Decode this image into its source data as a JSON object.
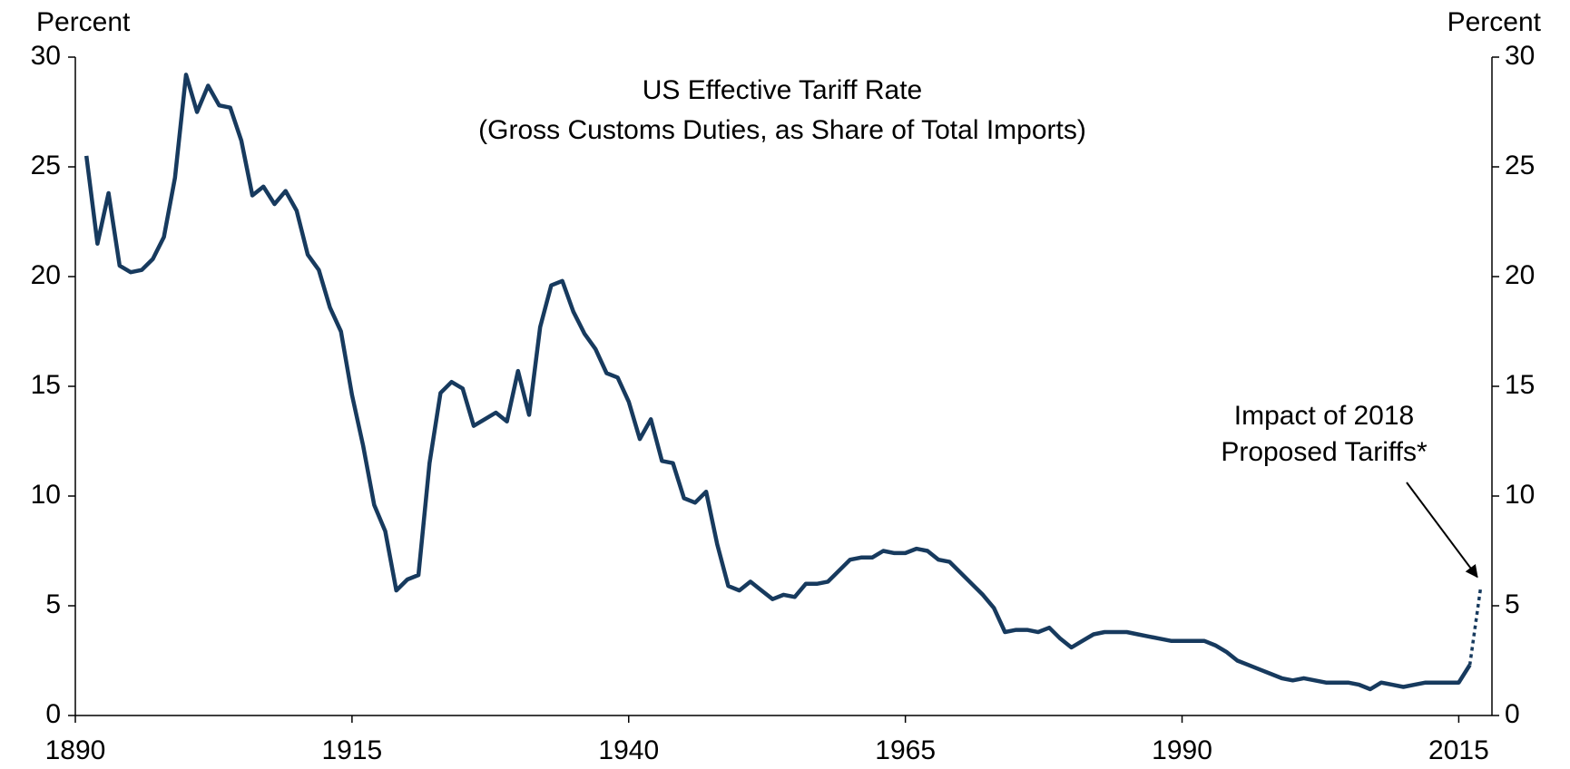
{
  "chart_data": {
    "type": "line",
    "title": "US Effective Tariff Rate",
    "subtitle": "(Gross Customs Duties, as Share of Total Imports)",
    "ylabel": "Percent",
    "y2label": "Percent",
    "annotation": {
      "text": [
        "Impact of 2018",
        "Proposed Tariffs*"
      ]
    },
    "xlim": [
      1890,
      2018
    ],
    "xticks": [
      1890,
      1915,
      1940,
      1965,
      1990,
      2015
    ],
    "ylim": [
      0,
      30
    ],
    "yticks": [
      0,
      5,
      10,
      15,
      20,
      25,
      30
    ],
    "y2lim": [
      0,
      30
    ],
    "y2ticks": [
      0,
      5,
      10,
      15,
      20,
      25,
      30
    ],
    "grid": false,
    "series": [
      {
        "color": "#173a5e",
        "style": "solid",
        "x": [
          1891,
          1892,
          1893,
          1894,
          1895,
          1896,
          1897,
          1898,
          1899,
          1900,
          1901,
          1902,
          1903,
          1904,
          1905,
          1906,
          1907,
          1908,
          1909,
          1910,
          1911,
          1912,
          1913,
          1914,
          1915,
          1916,
          1917,
          1918,
          1919,
          1920,
          1921,
          1922,
          1923,
          1924,
          1925,
          1926,
          1927,
          1928,
          1929,
          1930,
          1931,
          1932,
          1933,
          1934,
          1935,
          1936,
          1937,
          1938,
          1939,
          1940,
          1941,
          1942,
          1943,
          1944,
          1945,
          1946,
          1947,
          1948,
          1949,
          1950,
          1951,
          1952,
          1953,
          1954,
          1955,
          1956,
          1957,
          1958,
          1959,
          1960,
          1961,
          1962,
          1963,
          1964,
          1965,
          1966,
          1967,
          1968,
          1969,
          1970,
          1971,
          1972,
          1973,
          1974,
          1975,
          1976,
          1977,
          1978,
          1979,
          1980,
          1981,
          1982,
          1983,
          1984,
          1985,
          1986,
          1987,
          1988,
          1989,
          1990,
          1991,
          1992,
          1993,
          1994,
          1995,
          1996,
          1997,
          1998,
          1999,
          2000,
          2001,
          2002,
          2003,
          2004,
          2005,
          2006,
          2007,
          2008,
          2009,
          2010,
          2011,
          2012,
          2013,
          2014,
          2015,
          2016
        ],
        "values": [
          25.5,
          21.5,
          23.8,
          20.5,
          20.2,
          20.3,
          20.8,
          21.8,
          24.5,
          29.2,
          27.5,
          28.7,
          27.8,
          27.7,
          26.2,
          23.7,
          24.1,
          23.3,
          23.9,
          23.0,
          21.0,
          20.3,
          18.6,
          17.5,
          14.6,
          12.3,
          9.6,
          8.4,
          5.7,
          6.2,
          6.4,
          11.5,
          14.7,
          15.2,
          14.9,
          13.2,
          13.5,
          13.8,
          13.4,
          15.7,
          13.7,
          17.7,
          19.6,
          19.8,
          18.4,
          17.4,
          16.7,
          15.6,
          15.4,
          14.3,
          12.6,
          13.5,
          11.6,
          11.5,
          9.9,
          9.7,
          10.2,
          7.8,
          5.9,
          5.7,
          6.1,
          5.7,
          5.3,
          5.5,
          5.4,
          6.0,
          6.0,
          6.1,
          6.6,
          7.1,
          7.2,
          7.2,
          7.5,
          7.4,
          7.4,
          7.6,
          7.5,
          7.1,
          7.0,
          6.5,
          6.0,
          5.5,
          4.9,
          3.8,
          3.9,
          3.9,
          3.8,
          4.0,
          3.5,
          3.1,
          3.4,
          3.7,
          3.8,
          3.8,
          3.8,
          3.7,
          3.6,
          3.5,
          3.4,
          3.4,
          3.4,
          3.4,
          3.2,
          2.9,
          2.5,
          2.3,
          2.1,
          1.9,
          1.7,
          1.6,
          1.7,
          1.6,
          1.5,
          1.5,
          1.5,
          1.4,
          1.2,
          1.5,
          1.4,
          1.3,
          1.4,
          1.5,
          1.5,
          1.5,
          1.5,
          2.3
        ]
      },
      {
        "color": "#173a5e",
        "style": "dotted",
        "x": [
          2016,
          2017
        ],
        "values": [
          2.3,
          5.9
        ]
      }
    ]
  }
}
